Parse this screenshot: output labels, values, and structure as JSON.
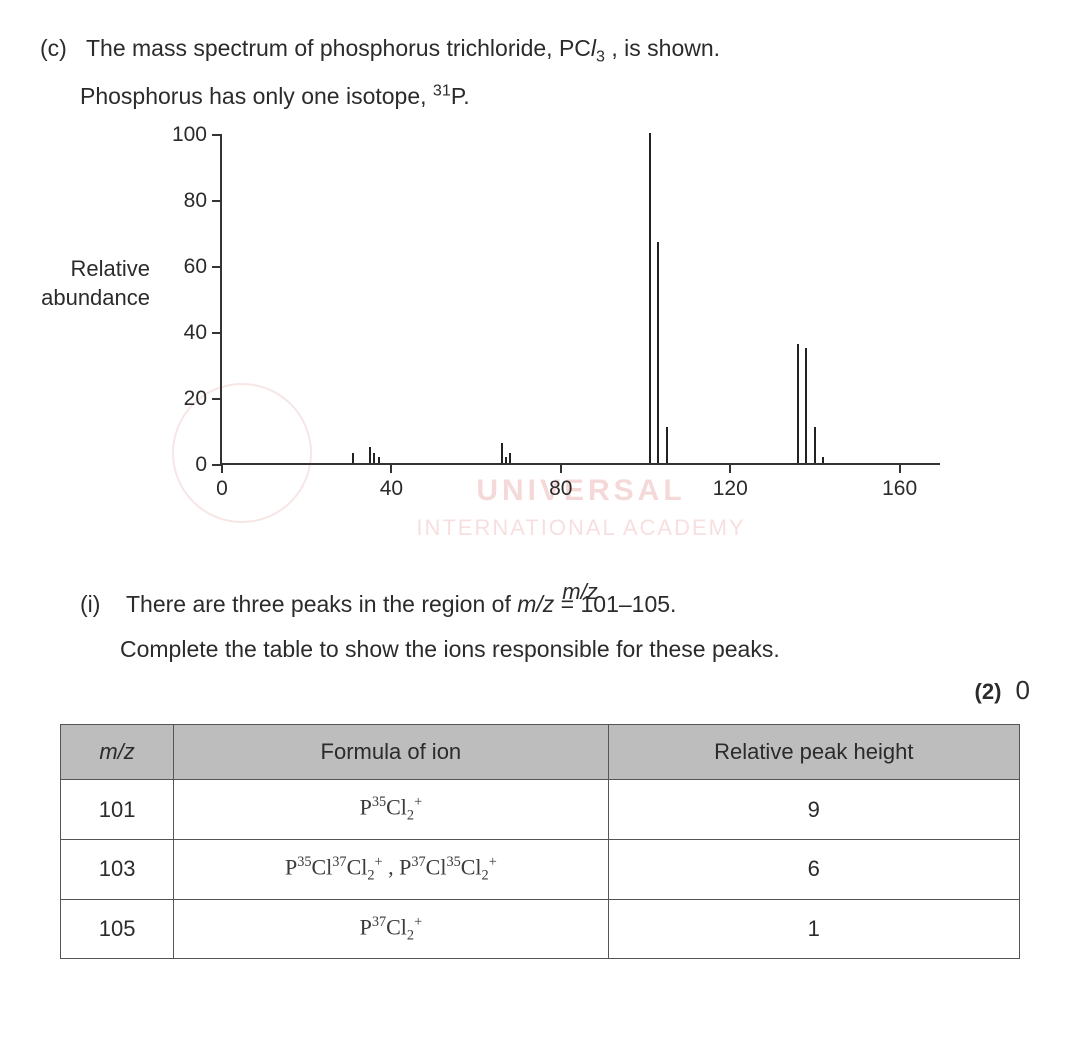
{
  "question": {
    "part_label": "(c)",
    "line1_before": "The mass spectrum of phosphorus trichloride, PC",
    "line1_sub": "l",
    "line1_sub2": "3",
    "line1_after": " , is shown.",
    "line2_before": "Phosphorus has only one isotope, ",
    "line2_sup": "31",
    "line2_after": "P."
  },
  "chart": {
    "type": "mass-spectrum",
    "ylabel_line1": "Relative",
    "ylabel_line2": "abundance",
    "xlabel": "m/z",
    "xlim": [
      0,
      170
    ],
    "ylim": [
      0,
      100
    ],
    "yticks": [
      0,
      20,
      40,
      60,
      80,
      100
    ],
    "xticks": [
      0,
      40,
      80,
      120,
      160
    ],
    "axis_color": "#333333",
    "peak_color": "#222222",
    "background_color": "#ffffff",
    "label_fontsize": 21,
    "peaks": [
      {
        "mz": 31,
        "h": 3
      },
      {
        "mz": 35,
        "h": 5
      },
      {
        "mz": 36,
        "h": 3
      },
      {
        "mz": 37,
        "h": 2
      },
      {
        "mz": 66,
        "h": 6
      },
      {
        "mz": 67,
        "h": 2
      },
      {
        "mz": 68,
        "h": 3
      },
      {
        "mz": 101,
        "h": 100
      },
      {
        "mz": 103,
        "h": 67
      },
      {
        "mz": 105,
        "h": 11
      },
      {
        "mz": 136,
        "h": 36
      },
      {
        "mz": 138,
        "h": 35
      },
      {
        "mz": 140,
        "h": 11
      },
      {
        "mz": 142,
        "h": 2
      }
    ],
    "watermark1": "UNIVERSAL",
    "watermark2": "INTERNATIONAL ACADEMY"
  },
  "subquestion": {
    "num": "(i)",
    "line1_before": "There are three peaks in the region of ",
    "line1_mz": "m/z",
    "line1_after": " = 101–105.",
    "line2": "Complete the table to show the ions responsible for these peaks.",
    "marks": "(2)",
    "score": "0"
  },
  "table": {
    "headers": {
      "c1": "m/z",
      "c2": "Formula of ion",
      "c3": "Relative peak height"
    },
    "header_bg": "#bdbdbd",
    "border_color": "#555555",
    "rows": [
      {
        "mz": "101",
        "formula_html": "P<span class='hw-sup'>35</span>Cl<span class='hw-sub'>2</span><span class='hw-sup'>+</span>",
        "height": "9"
      },
      {
        "mz": "103",
        "formula_html": "P<span class='hw-sup'>35</span>Cl<span class='hw-sup'>37</span>Cl<span class='hw-sub'>2</span><span class='hw-sup'>+</span> , P<span class='hw-sup'>37</span>Cl<span class='hw-sup'>35</span>Cl<span class='hw-sub'>2</span><span class='hw-sup'>+</span>",
        "height": "6"
      },
      {
        "mz": "105",
        "formula_html": "P<span class='hw-sup'>37</span>Cl<span class='hw-sub'>2</span><span class='hw-sup'>+</span>",
        "height": "1"
      }
    ]
  }
}
